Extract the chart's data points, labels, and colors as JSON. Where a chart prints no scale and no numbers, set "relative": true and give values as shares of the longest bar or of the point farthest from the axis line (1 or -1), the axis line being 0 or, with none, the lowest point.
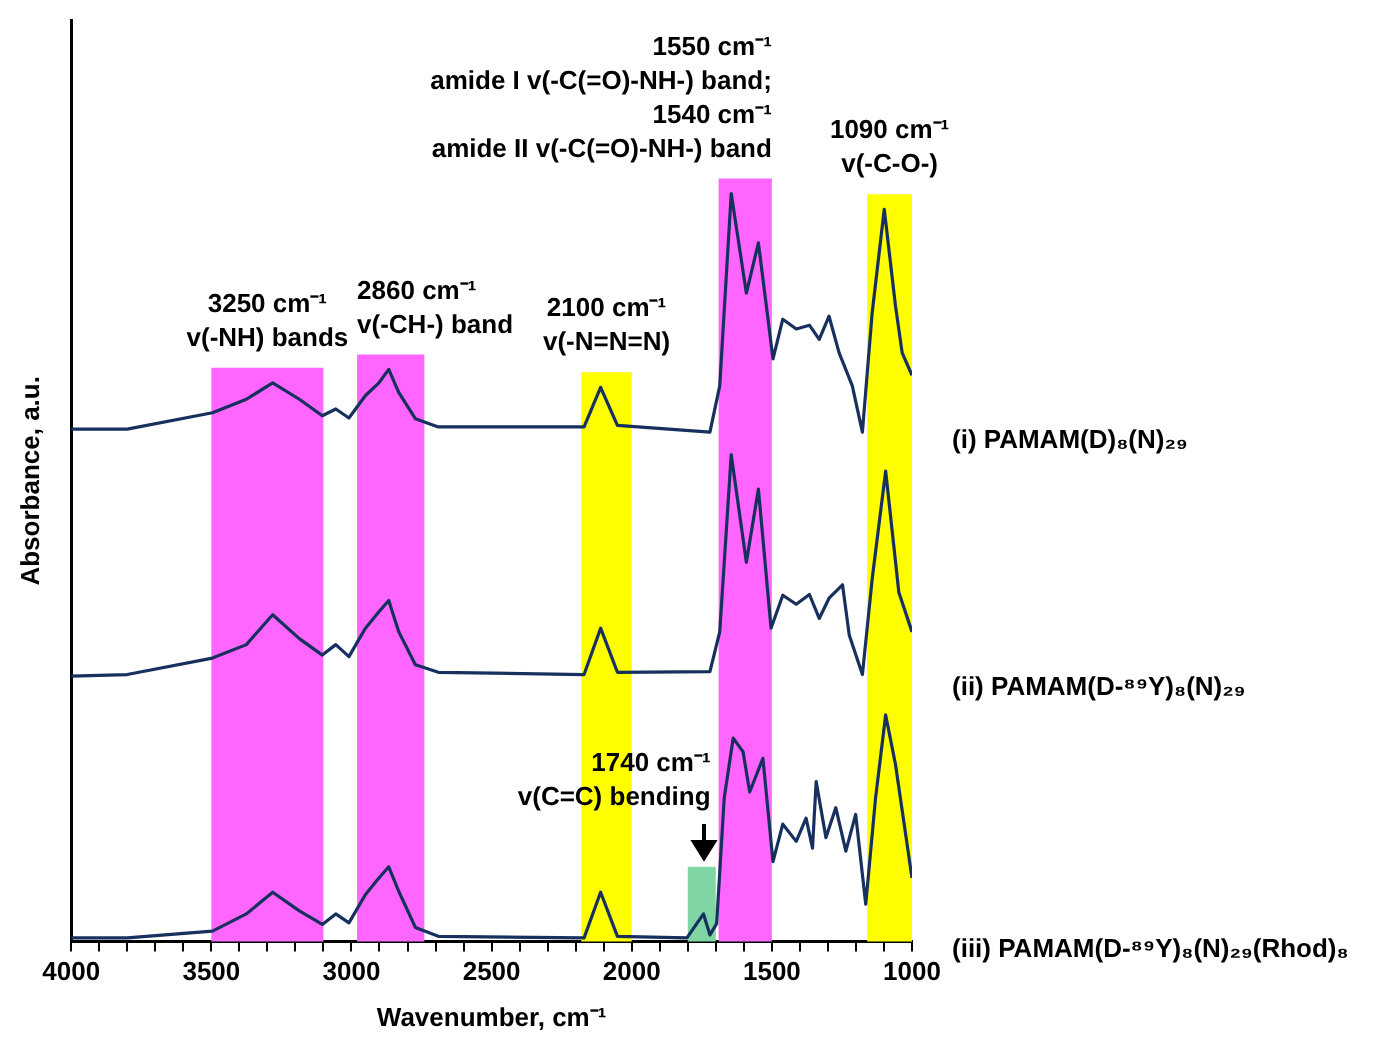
{
  "chart_data": {
    "type": "line",
    "relative": true,
    "xlabel": "Wavenumber, cm⁻¹",
    "ylabel": "Absorbance, a.u.",
    "xlim": [
      4000,
      1000
    ],
    "xticks": [
      4000,
      {
        "value": 3900,
        "label": null
      },
      {
        "value": 3800,
        "label": null
      },
      {
        "value": 3700,
        "label": null
      },
      {
        "value": 3600,
        "label": null
      },
      3500,
      {
        "value": 3400,
        "label": null
      },
      {
        "value": 3300,
        "label": null
      },
      {
        "value": 3200,
        "label": null
      },
      {
        "value": 3100,
        "label": null
      },
      3000,
      {
        "value": 2900,
        "label": null
      },
      {
        "value": 2800,
        "label": null
      },
      {
        "value": 2700,
        "label": null
      },
      {
        "value": 2600,
        "label": null
      },
      2500,
      {
        "value": 2400,
        "label": null
      },
      {
        "value": 2300,
        "label": null
      },
      {
        "value": 2200,
        "label": null
      },
      {
        "value": 2100,
        "label": null
      },
      2000,
      {
        "value": 1900,
        "label": null
      },
      {
        "value": 1800,
        "label": null
      },
      {
        "value": 1700,
        "label": null
      },
      {
        "value": 1600,
        "label": null
      },
      1500,
      {
        "value": 1400,
        "label": null
      },
      {
        "value": 1300,
        "label": null
      },
      {
        "value": 1200,
        "label": null
      },
      {
        "value": 1100,
        "label": null
      },
      1000
    ],
    "series": [
      {
        "name": "(i) PAMAM(D)₈(N)₂₉",
        "color": "#17305e",
        "x": [
          4000,
          3800,
          3496,
          3375,
          3281,
          3186,
          3104,
          3056,
          3009,
          2950,
          2902,
          2867,
          2831,
          2772,
          2690,
          2170,
          2111,
          2051,
          1721,
          1686,
          1645,
          1591,
          1548,
          1496,
          1461,
          1413,
          1366,
          1331,
          1296,
          1260,
          1213,
          1177,
          1142,
          1099,
          1059,
          1035,
          1000
        ],
        "values": [
          0.685,
          0.685,
          0.707,
          0.725,
          0.747,
          0.725,
          0.703,
          0.712,
          0.7,
          0.73,
          0.747,
          0.765,
          0.734,
          0.699,
          0.688,
          0.688,
          0.741,
          0.69,
          0.681,
          0.743,
          1.0,
          0.867,
          0.934,
          0.779,
          0.832,
          0.819,
          0.824,
          0.805,
          0.836,
          0.787,
          0.743,
          0.681,
          0.841,
          0.979,
          0.85,
          0.787,
          0.757
        ]
      },
      {
        "name": "(ii) PAMAM(D-⁸⁹Y)₈(N)₂₉",
        "color": "#17305e",
        "x": [
          4000,
          3800,
          3496,
          3375,
          3281,
          3186,
          3104,
          3056,
          3009,
          2950,
          2902,
          2867,
          2831,
          2772,
          2690,
          2170,
          2111,
          2051,
          1721,
          1686,
          1645,
          1591,
          1548,
          1503,
          1461,
          1413,
          1366,
          1331,
          1296,
          1248,
          1224,
          1177,
          1142,
          1094,
          1047,
          1000
        ],
        "values": [
          0.355,
          0.357,
          0.379,
          0.397,
          0.437,
          0.405,
          0.383,
          0.397,
          0.381,
          0.419,
          0.441,
          0.456,
          0.414,
          0.37,
          0.36,
          0.357,
          0.419,
          0.36,
          0.361,
          0.414,
          0.651,
          0.507,
          0.605,
          0.419,
          0.463,
          0.451,
          0.464,
          0.432,
          0.459,
          0.477,
          0.41,
          0.357,
          0.485,
          0.629,
          0.467,
          0.414
        ]
      },
      {
        "name": "(iii) PAMAM(D-⁸⁹Y)₈(N)₂₉(Rhod)₈",
        "color": "#17305e",
        "x": [
          4000,
          3800,
          3496,
          3375,
          3281,
          3186,
          3104,
          3056,
          3009,
          2950,
          2902,
          2867,
          2831,
          2772,
          2690,
          2170,
          2111,
          2051,
          1803,
          1744,
          1721,
          1697,
          1670,
          1638,
          1603,
          1579,
          1532,
          1496,
          1461,
          1413,
          1378,
          1355,
          1342,
          1307,
          1272,
          1236,
          1201,
          1165,
          1130,
          1094,
          1059,
          1000
        ],
        "values": [
          0.005,
          0.005,
          0.014,
          0.037,
          0.066,
          0.041,
          0.023,
          0.037,
          0.025,
          0.063,
          0.085,
          0.1,
          0.067,
          0.019,
          0.007,
          0.005,
          0.066,
          0.007,
          0.005,
          0.037,
          0.009,
          0.024,
          0.192,
          0.272,
          0.254,
          0.2,
          0.245,
          0.107,
          0.157,
          0.134,
          0.165,
          0.125,
          0.214,
          0.139,
          0.179,
          0.121,
          0.17,
          0.05,
          0.192,
          0.303,
          0.237,
          0.085
        ]
      }
    ],
    "bands": [
      {
        "axis": "x",
        "from": 3500,
        "to": 3100,
        "color": "#ff66ff",
        "label": "3250 cm⁻¹\nv(-NH) bands"
      },
      {
        "axis": "x",
        "from": 2980,
        "to": 2740,
        "color": "#ff66ff",
        "label": "2860 cm⁻¹\nv(-CH-) band"
      },
      {
        "axis": "x",
        "from": 2180,
        "to": 2000,
        "color": "#ffff00",
        "label": "2100 cm⁻¹\nv(-N=N=N)"
      },
      {
        "axis": "x",
        "from": 1160,
        "to": 1000,
        "color": "#ffff00",
        "label": "1090 cm⁻¹\nv(-C-O-)"
      },
      {
        "axis": "x",
        "from": 1690,
        "to": 1500,
        "color": "#ff66ff",
        "label": "1550 cm⁻¹\namide I v(-C(=O)-NH-) band;\n1540 cm⁻¹\namide II v(-C(=O)-NH-) band"
      },
      {
        "axis": "x",
        "from": 1800,
        "to": 1700,
        "color": "#7fd6a4"
      }
    ],
    "annotations": [
      {
        "text": "1740 cm⁻¹\nv(C=C) bending",
        "x": 1740,
        "y": 0.1
      }
    ]
  }
}
